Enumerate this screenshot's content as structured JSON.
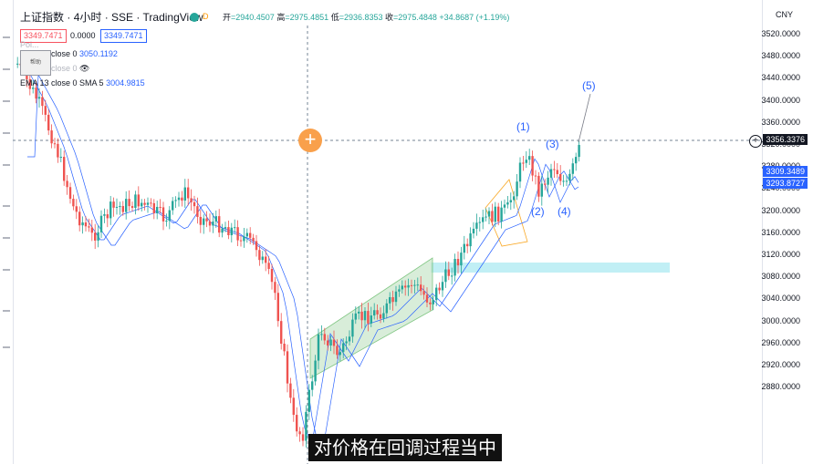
{
  "header": {
    "symbol": "上证指数",
    "interval": "4小时",
    "exchange": "SSE",
    "source": "TradingView",
    "badge": "D",
    "ohlc": {
      "open_label": "开",
      "open": "=2940.4507",
      "high_label": "高",
      "high": "=2975.4851",
      "low_label": "低",
      "low": "=2936.8353",
      "close_label": "收",
      "close": "=2975.4848 +34.8687 (+1.19%)"
    },
    "pill_sell": "3349.7471",
    "pill_spread": "0.0000",
    "pill_buy": "3349.7471"
  },
  "legend": [
    {
      "name": "Poi...",
      "value": ""
    },
    {
      "name": "close 0",
      "value": "3050.1192"
    },
    {
      "name": "close 0",
      "value": ""
    },
    {
      "name": "EMA 13 close 0 SMA 5",
      "value": "3004.9815"
    }
  ],
  "popup_text": "帮助",
  "price_axis": {
    "currency": "CNY",
    "ticks": [
      "3520.0000",
      "3480.0000",
      "3440.0000",
      "3400.0000",
      "3360.0000",
      "3320.0000",
      "3280.0000",
      "3240.0000",
      "3200.0000",
      "3160.0000",
      "3120.0000",
      "3080.0000",
      "3040.0000",
      "3000.0000",
      "2960.0000",
      "2920.0000",
      "2880.0000"
    ],
    "crosshair_price": "3356.3376",
    "ema_price": "3309.3489",
    "sma_price": "3293.8727"
  },
  "waves": [
    "(1)",
    "(2)",
    "(3)",
    "(4)",
    "(5)"
  ],
  "subtitle": "对价格在回调过程当中",
  "colors": {
    "up": "#26a69a",
    "down": "#ef5350",
    "accent": "#2962ff"
  }
}
